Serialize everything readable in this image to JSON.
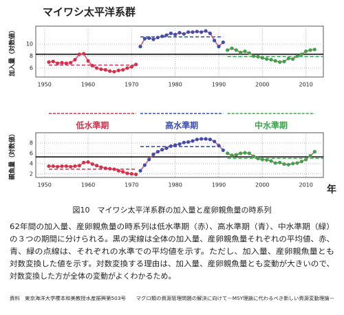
{
  "title": "マイワシ太平洋系群",
  "chart_data": [
    {
      "type": "line",
      "ylabel": "加入量（対数値）",
      "xlim": [
        1948,
        2014
      ],
      "ylim": [
        4.5,
        13
      ],
      "xticks": [
        1950,
        1960,
        1970,
        1980,
        1990,
        2000,
        2010
      ],
      "yticks": [
        6,
        8,
        10
      ],
      "grid": true,
      "line_color": "#e0607c",
      "series": [
        {
          "color": "#d6304a",
          "x": [
            1951,
            1952,
            1953,
            1954,
            1955,
            1956,
            1957,
            1958,
            1959,
            1960,
            1961,
            1962,
            1963,
            1964,
            1965,
            1966,
            1967,
            1968,
            1969,
            1970,
            1971
          ],
          "values": [
            7.0,
            7.1,
            6.8,
            6.9,
            6.8,
            6.9,
            7.4,
            8.3,
            8.4,
            7.2,
            6.4,
            6.0,
            5.8,
            5.7,
            5.5,
            5.4,
            5.6,
            5.7,
            6.0,
            6.2,
            6.6
          ]
        },
        {
          "color": "#3a4fb0",
          "x": [
            1972,
            1973,
            1974,
            1975,
            1976,
            1977,
            1978,
            1979,
            1980,
            1981,
            1982,
            1983,
            1984,
            1985,
            1986,
            1987,
            1988,
            1989,
            1990,
            1991
          ],
          "values": [
            9.6,
            10.9,
            11.0,
            10.8,
            11.1,
            11.3,
            11.5,
            11.8,
            11.6,
            11.9,
            11.7,
            12.0,
            12.0,
            12.1,
            12.0,
            12.2,
            11.8,
            10.6,
            9.6,
            10.3
          ]
        },
        {
          "color": "#3aa54a",
          "x": [
            1992,
            1993,
            1994,
            1995,
            1996,
            1997,
            1998,
            1999,
            2000,
            2001,
            2002,
            2003,
            2004,
            2005,
            2006,
            2007,
            2008,
            2009,
            2010,
            2011,
            2012
          ],
          "values": [
            9.0,
            9.3,
            9.0,
            8.6,
            8.8,
            8.5,
            8.0,
            7.9,
            7.7,
            7.5,
            7.4,
            7.2,
            7.0,
            7.1,
            7.6,
            7.5,
            8.0,
            8.3,
            8.8,
            9.0,
            9.1
          ]
        }
      ],
      "mean_lines": [
        {
          "value": 8.3,
          "color": "#000000",
          "dashed": false,
          "span": [
            1948,
            2014
          ]
        },
        {
          "value": 6.5,
          "color": "#d6304a",
          "dashed": true,
          "span": [
            1951,
            1971
          ]
        },
        {
          "value": 11.2,
          "color": "#2a3fa0",
          "dashed": true,
          "span": [
            1972,
            1991
          ]
        },
        {
          "value": 7.9,
          "color": "#3aa54a",
          "dashed": true,
          "span": [
            1992,
            2014
          ]
        }
      ]
    },
    {
      "type": "line",
      "ylabel": "親魚量（対数値）",
      "xlabel": "年",
      "xlim": [
        1948,
        2014
      ],
      "ylim": [
        1.3,
        10
      ],
      "xticks": [
        1950,
        1960,
        1970,
        1980,
        1990,
        2000,
        2010
      ],
      "yticks": [
        2,
        4,
        6,
        8
      ],
      "grid": true,
      "line_color": "#e0607c",
      "series": [
        {
          "name": "低水準期",
          "color": "#d6304a",
          "x": [
            1951,
            1952,
            1953,
            1954,
            1955,
            1956,
            1957,
            1958,
            1959,
            1960,
            1961,
            1962,
            1963,
            1964,
            1965,
            1966,
            1967,
            1968,
            1969,
            1970,
            1971
          ],
          "values": [
            3.5,
            3.5,
            3.4,
            3.5,
            3.5,
            3.4,
            3.5,
            3.6,
            4.2,
            4.3,
            3.9,
            3.6,
            3.3,
            3.1,
            3.0,
            2.9,
            2.6,
            2.4,
            2.1,
            2.0,
            1.9
          ]
        },
        {
          "name": "高水準期",
          "color": "#3a4fb0",
          "x": [
            1972,
            1973,
            1974,
            1975,
            1976,
            1977,
            1978,
            1979,
            1980,
            1981,
            1982,
            1983,
            1984,
            1985,
            1986,
            1987,
            1988,
            1989,
            1990,
            1991
          ],
          "values": [
            2.6,
            3.7,
            4.8,
            5.8,
            6.3,
            6.7,
            7.0,
            7.4,
            7.6,
            7.8,
            8.1,
            8.2,
            8.4,
            8.7,
            8.8,
            8.8,
            8.7,
            8.3,
            7.5,
            6.6
          ]
        },
        {
          "name": "中水準期",
          "color": "#3aa54a",
          "x": [
            1992,
            1993,
            1994,
            1995,
            1996,
            1997,
            1998,
            1999,
            2000,
            2001,
            2002,
            2003,
            2004,
            2005,
            2006,
            2007,
            2008,
            2009,
            2010,
            2011,
            2012
          ],
          "values": [
            6.0,
            5.6,
            5.7,
            6.0,
            6.1,
            6.0,
            5.4,
            5.0,
            4.8,
            4.7,
            4.5,
            4.1,
            4.2,
            3.9,
            3.8,
            4.0,
            4.1,
            4.4,
            4.8,
            5.5,
            6.3
          ]
        }
      ],
      "mean_lines": [
        {
          "value": 5.3,
          "color": "#000000",
          "dashed": false,
          "span": [
            1948,
            2014
          ]
        },
        {
          "value": 2.9,
          "color": "#d6304a",
          "dashed": true,
          "span": [
            1951,
            1971
          ]
        },
        {
          "value": 7.3,
          "color": "#2a3fa0",
          "dashed": true,
          "span": [
            1972,
            1991
          ]
        },
        {
          "value": 5.0,
          "color": "#3aa54a",
          "dashed": true,
          "span": [
            1992,
            2014
          ]
        }
      ]
    }
  ],
  "caption": "図10　マイワシ太平洋系群の加入量と産卵親魚量の時系列",
  "body": [
    "62年間の加入量、産卵親魚量の時系列は低水準期（赤）、高水準期（青）、中水準期（緑）",
    "の３つの期間に分けられる。黒の実線は全体の加入量、産卵親魚量それぞれの平均値、赤、",
    "青、緑の点線は、それぞれの水準での平均値を示す。ただし、加入量、産卵親魚量とも",
    "対数変換した値を示す。対数変換する理由は、加入量、産卵親魚量とも変動が大きいので、",
    "対数変換した方が全体の変動がよくわかるため。"
  ],
  "source": "資料　東京海洋大学櫻本和美教授水産振興第503号　　マグロ類の資源管理問題の解決に向けて－MSY理論に代わるべき新しい資源変動理論－"
}
